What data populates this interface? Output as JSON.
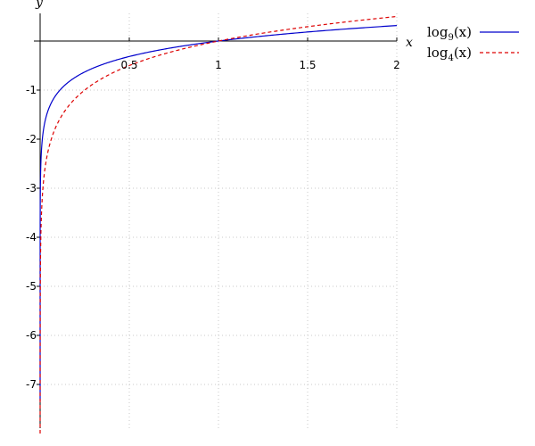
{
  "chart_data": {
    "type": "line",
    "xlabel": "x",
    "ylabel": "y",
    "xlim": [
      0,
      2
    ],
    "ylim": [
      -8.0,
      0.6
    ],
    "x_ticks": [
      {
        "value": 0.5,
        "label": "0.5"
      },
      {
        "value": 1,
        "label": "1"
      },
      {
        "value": 1.5,
        "label": "1.5"
      },
      {
        "value": 2,
        "label": "2"
      }
    ],
    "y_ticks": [
      {
        "value": -1,
        "label": "-1"
      },
      {
        "value": -2,
        "label": "-2"
      },
      {
        "value": -3,
        "label": "-3"
      },
      {
        "value": -4,
        "label": "-4"
      },
      {
        "value": -5,
        "label": "-5"
      },
      {
        "value": -6,
        "label": "-6"
      },
      {
        "value": -7,
        "label": "-7"
      }
    ],
    "grid": true,
    "legend_position": "right",
    "series": [
      {
        "name_base": "log",
        "name_sub": "9",
        "name_arg": "(x)",
        "function": "log9",
        "color": "#0000cc",
        "style": "solid",
        "points": [
          [
            0.0001,
            -4.19
          ],
          [
            0.001,
            -3.14
          ],
          [
            0.01,
            -2.1
          ],
          [
            0.05,
            -1.36
          ],
          [
            0.1,
            -1.05
          ],
          [
            0.2,
            -0.73
          ],
          [
            0.3,
            -0.55
          ],
          [
            0.5,
            -0.32
          ],
          [
            0.75,
            -0.13
          ],
          [
            1,
            0
          ],
          [
            1.25,
            0.1
          ],
          [
            1.5,
            0.18
          ],
          [
            1.75,
            0.25
          ],
          [
            2,
            0.32
          ]
        ]
      },
      {
        "name_base": "log",
        "name_sub": "4",
        "name_arg": "(x)",
        "function": "log4",
        "color": "#dd0000",
        "style": "dashed",
        "points": [
          [
            0.0001,
            -6.64
          ],
          [
            0.001,
            -4.98
          ],
          [
            0.01,
            -3.32
          ],
          [
            0.05,
            -2.16
          ],
          [
            0.1,
            -1.66
          ],
          [
            0.2,
            -1.16
          ],
          [
            0.3,
            -0.87
          ],
          [
            0.5,
            -0.5
          ],
          [
            0.75,
            -0.21
          ],
          [
            1,
            0
          ],
          [
            1.25,
            0.16
          ],
          [
            1.5,
            0.29
          ],
          [
            1.75,
            0.4
          ],
          [
            2,
            0.5
          ]
        ]
      }
    ]
  }
}
